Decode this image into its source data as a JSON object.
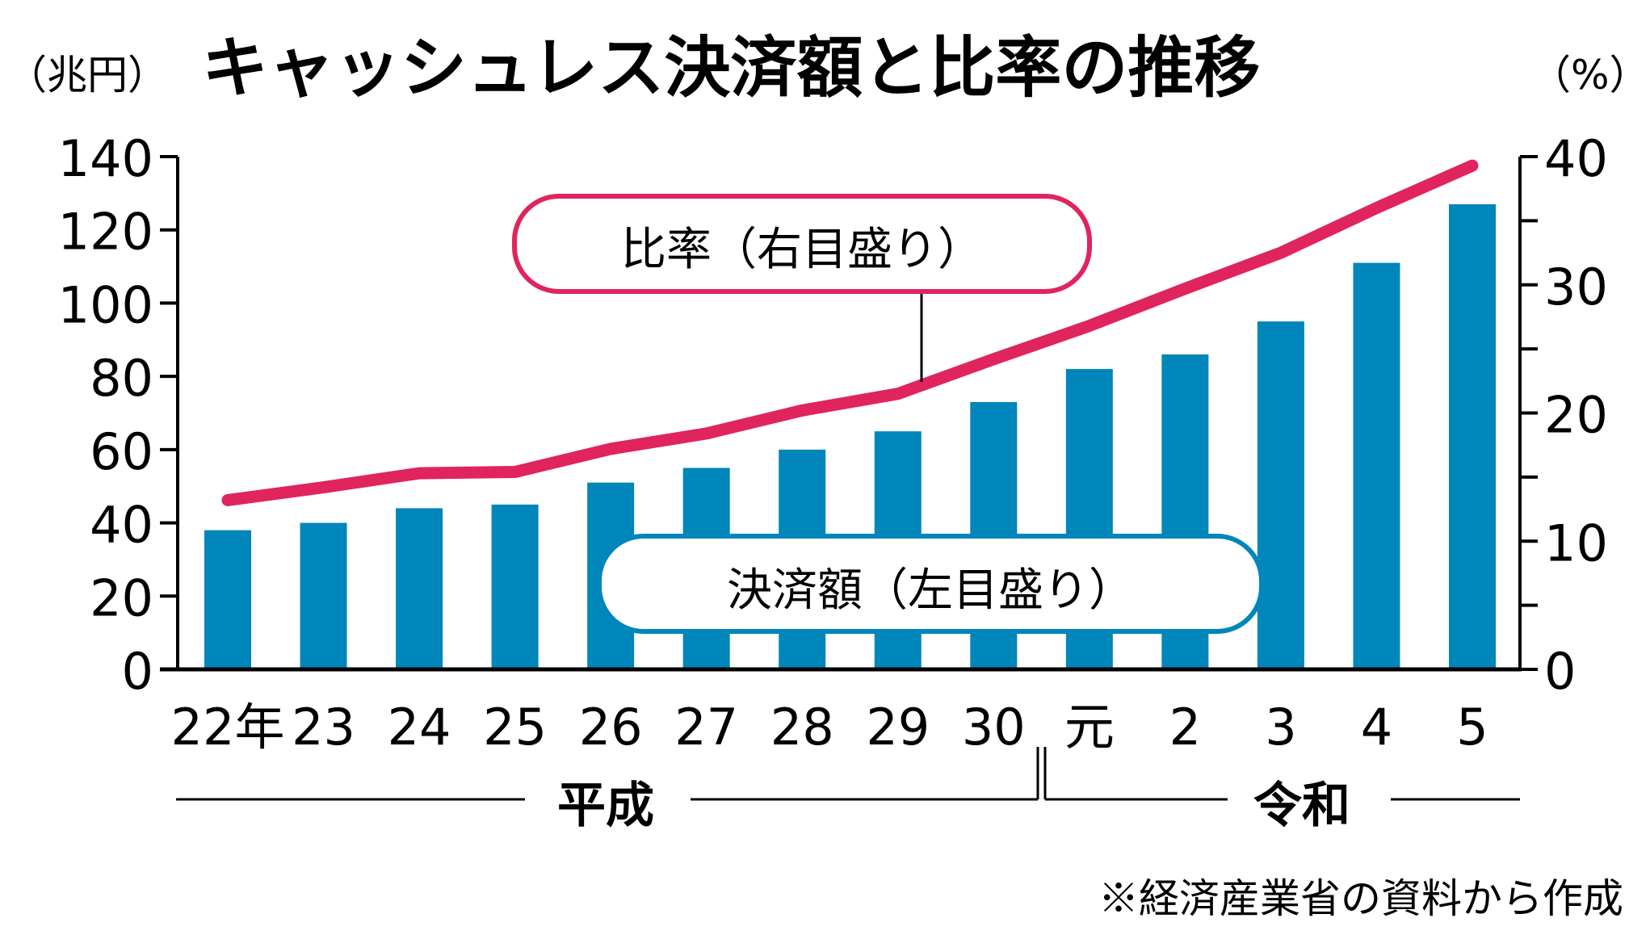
{
  "header": {
    "title": "キャッシュレス決済額と比率の推移",
    "left_unit": "（兆円）",
    "right_unit": "（%）"
  },
  "legend": {
    "ratio_label": "比率（右目盛り）",
    "amount_label": "決済額（左目盛り）"
  },
  "eras": {
    "heisei": "平成",
    "reiwa": "令和"
  },
  "source_note": "※経済産業省の資料から作成",
  "colors": {
    "bar": "#0086BA",
    "line": "#E0245E",
    "axis": "#000000"
  },
  "chart_data": {
    "type": "bar+line",
    "title": "キャッシュレス決済額と比率の推移",
    "categories": [
      "22年",
      "23",
      "24",
      "25",
      "26",
      "27",
      "28",
      "29",
      "30",
      "元",
      "2",
      "3",
      "4",
      "5"
    ],
    "series": [
      {
        "name": "決済額（左目盛り）",
        "type": "bar",
        "axis": "left",
        "unit": "兆円",
        "values": [
          38,
          40,
          44,
          45,
          51,
          55,
          60,
          65,
          73,
          82,
          86,
          95,
          111,
          127
        ]
      },
      {
        "name": "比率（右目盛り）",
        "type": "line",
        "axis": "right",
        "unit": "%",
        "values": [
          13.2,
          14.2,
          15.3,
          15.4,
          17.2,
          18.4,
          20.2,
          21.5,
          24.2,
          26.8,
          29.7,
          32.5,
          36.0,
          39.3
        ]
      }
    ],
    "left_axis": {
      "label": "兆円",
      "ylim": [
        0,
        140
      ],
      "ticks": [
        0,
        20,
        40,
        60,
        80,
        100,
        120,
        140
      ]
    },
    "right_axis": {
      "label": "%",
      "ylim": [
        0,
        40
      ],
      "ticks": [
        0,
        10,
        20,
        30,
        40
      ],
      "minor_ticks": [
        5,
        15,
        25,
        35
      ]
    },
    "era_groups": [
      {
        "label": "平成",
        "from": "22年",
        "to": "30"
      },
      {
        "label": "令和",
        "from": "元",
        "to": "5"
      }
    ],
    "grid": false,
    "annotation": "※経済産業省の資料から作成"
  }
}
